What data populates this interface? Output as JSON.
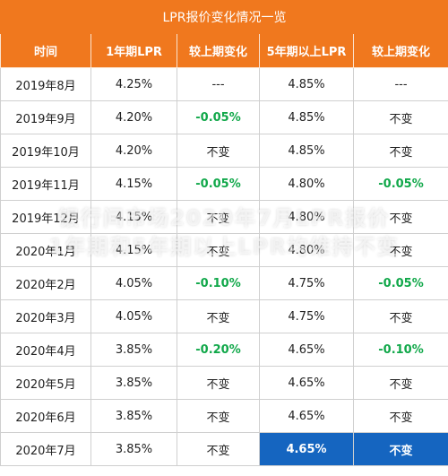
{
  "title": "LPR报价变化情况一览",
  "headers": [
    "时间",
    "1年期LPR",
    "较上期变化",
    "5年期以上LPR",
    "较上期变化"
  ],
  "rows": [
    [
      "2019年8月",
      "4.25%",
      "---",
      "4.85%",
      "---"
    ],
    [
      "2019年9月",
      "4.20%",
      "-0.05%",
      "4.85%",
      "不变"
    ],
    [
      "2019年10月",
      "4.20%",
      "不变",
      "4.85%",
      "不变"
    ],
    [
      "2019年11月",
      "4.15%",
      "-0.05%",
      "4.80%",
      "-0.05%"
    ],
    [
      "2019年12月",
      "4.15%",
      "不变",
      "4.80%",
      "不变"
    ],
    [
      "2020年1月",
      "4.15%",
      "不变",
      "4.80%",
      "不变"
    ],
    [
      "2020年2月",
      "4.05%",
      "-0.10%",
      "4.75%",
      "-0.05%"
    ],
    [
      "2020年3月",
      "4.05%",
      "不变",
      "4.75%",
      "不变"
    ],
    [
      "2020年4月",
      "3.85%",
      "-0.20%",
      "4.65%",
      "-0.10%"
    ],
    [
      "2020年5月",
      "3.85%",
      "不变",
      "4.65%",
      "不变"
    ],
    [
      "2020年6月",
      "3.85%",
      "不变",
      "4.65%",
      "不变"
    ],
    [
      "2020年7月",
      "3.85%",
      "不变",
      "4.65%",
      "不变"
    ]
  ],
  "watermark": [
    "银行间市场2020年7月LPR报价",
    "1年期和5年期以上LPR均维持不变"
  ],
  "colors": {
    "header": "#f0781e",
    "negative": "#11a84a",
    "highlight": "#1565c0"
  }
}
